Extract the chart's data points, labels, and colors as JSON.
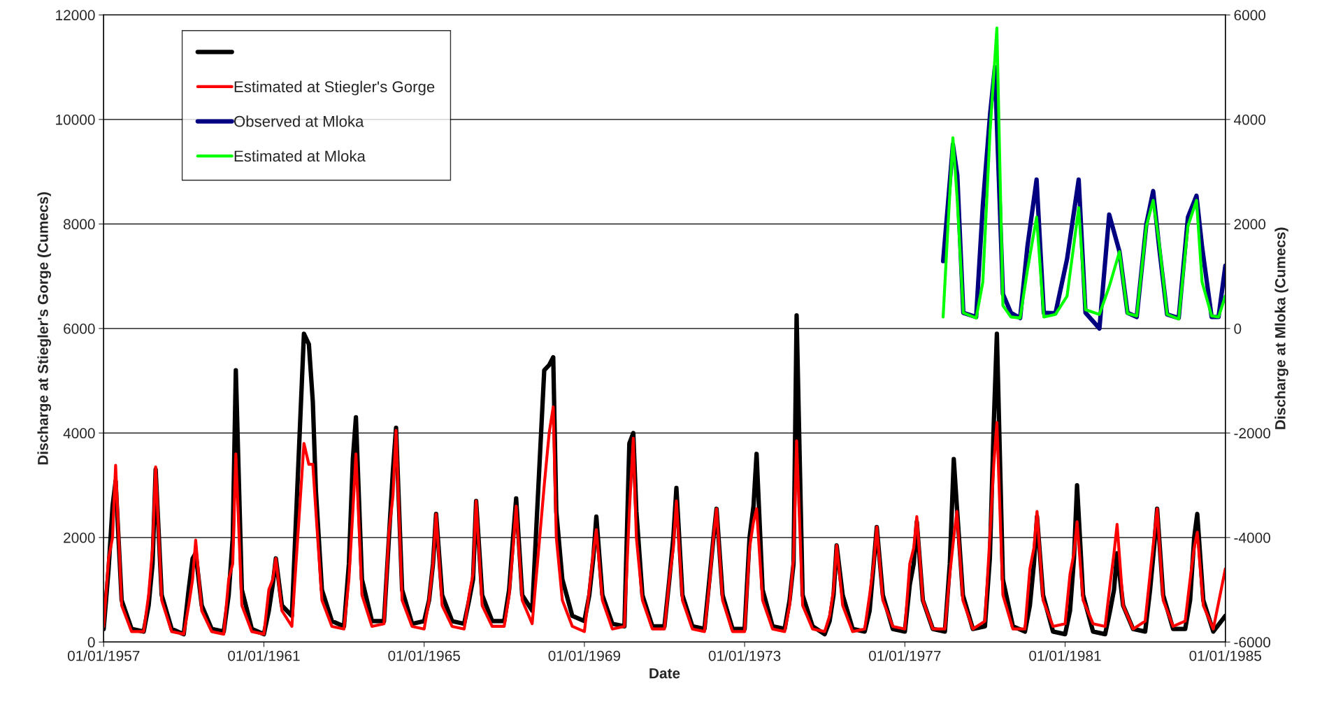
{
  "chart_data": {
    "type": "line",
    "xlabel": "Date",
    "ylabel": "Discharge at Stiegler's Gorge (Cumecs)",
    "y2label": "Discharge at Mloka (Cumecs)",
    "x": [
      "1957-01-01",
      "1957-02-15",
      "1957-03-23",
      "1957-04-20",
      "1957-06-14",
      "1957-09-13",
      "1958-01-01",
      "1958-02-15",
      "1958-03-23",
      "1958-04-20",
      "1958-06-14",
      "1958-09-13",
      "1959-01-01",
      "1959-02-15",
      "1959-03-23",
      "1959-04-20",
      "1959-06-14",
      "1959-09-13",
      "1960-01-01",
      "1960-02-15",
      "1960-03-23",
      "1960-04-20",
      "1960-06-14",
      "1960-09-13",
      "1961-01-01",
      "1961-02-15",
      "1961-03-23",
      "1961-04-20",
      "1961-06-14",
      "1961-09-13",
      "1962-01-01",
      "1962-02-15",
      "1962-03-23",
      "1962-04-20",
      "1962-06-14",
      "1962-09-13",
      "1963-01-01",
      "1963-02-15",
      "1963-03-23",
      "1963-04-20",
      "1963-06-14",
      "1963-09-13",
      "1964-01-01",
      "1964-02-15",
      "1964-03-23",
      "1964-04-20",
      "1964-06-14",
      "1964-09-13",
      "1965-01-01",
      "1965-02-15",
      "1965-03-23",
      "1965-04-20",
      "1965-06-14",
      "1965-09-13",
      "1966-01-01",
      "1966-02-15",
      "1966-03-23",
      "1966-04-20",
      "1966-06-14",
      "1966-09-13",
      "1967-01-01",
      "1967-02-15",
      "1967-03-23",
      "1967-04-20",
      "1967-06-14",
      "1967-09-13",
      "1968-01-01",
      "1968-02-15",
      "1968-03-23",
      "1968-04-20",
      "1968-06-14",
      "1968-09-13",
      "1969-01-01",
      "1969-02-15",
      "1969-03-23",
      "1969-04-20",
      "1969-06-14",
      "1969-09-13",
      "1970-01-01",
      "1970-02-15",
      "1970-03-23",
      "1970-04-20",
      "1970-06-14",
      "1970-09-13",
      "1971-01-01",
      "1971-02-15",
      "1971-03-23",
      "1971-04-20",
      "1971-06-14",
      "1971-09-13",
      "1972-01-01",
      "1972-02-15",
      "1972-03-23",
      "1972-04-20",
      "1972-06-14",
      "1972-09-13",
      "1973-01-01",
      "1973-02-15",
      "1973-03-23",
      "1973-04-20",
      "1973-06-14",
      "1973-09-13",
      "1974-01-01",
      "1974-02-15",
      "1974-03-23",
      "1974-04-20",
      "1974-06-14",
      "1974-09-13",
      "1975-01-01",
      "1975-02-15",
      "1975-03-23",
      "1975-04-20",
      "1975-06-14",
      "1975-09-13",
      "1976-01-01",
      "1976-02-15",
      "1976-03-23",
      "1976-04-20",
      "1976-06-14",
      "1976-09-13",
      "1977-01-01",
      "1977-02-15",
      "1977-03-23",
      "1977-04-20",
      "1977-06-14",
      "1977-09-13",
      "1978-01-01",
      "1978-02-15",
      "1978-03-23",
      "1978-04-20",
      "1978-06-14",
      "1978-09-13",
      "1979-01-01",
      "1979-02-15",
      "1979-03-23",
      "1979-04-20",
      "1979-06-14",
      "1979-09-13",
      "1980-01-01",
      "1980-02-15",
      "1980-03-23",
      "1980-04-20",
      "1980-06-14",
      "1980-09-13",
      "1981-01-01",
      "1981-02-15",
      "1981-03-23",
      "1981-04-20",
      "1981-06-14",
      "1981-09-13",
      "1982-01-01",
      "1982-02-15",
      "1982-03-23",
      "1982-04-20",
      "1982-06-14",
      "1982-09-13",
      "1983-01-01",
      "1983-02-15",
      "1983-03-23",
      "1983-04-20",
      "1983-06-14",
      "1983-09-13",
      "1984-01-01",
      "1984-02-15",
      "1984-03-23",
      "1984-04-20",
      "1984-06-14",
      "1984-09-13",
      "1985-01-01"
    ],
    "series": [
      {
        "color": "#000000",
        "values": [
          250,
          1400,
          2600,
          3080,
          800,
          250,
          200,
          700,
          1500,
          3300,
          900,
          250,
          150,
          1000,
          1600,
          1700,
          700,
          250,
          200,
          900,
          2000,
          5200,
          1000,
          250,
          150,
          600,
          1100,
          1600,
          700,
          500,
          5900,
          5700,
          4600,
          2900,
          1000,
          400,
          300,
          1500,
          3500,
          4300,
          1200,
          400,
          400,
          2000,
          3300,
          4100,
          1000,
          350,
          400,
          800,
          1500,
          2450,
          900,
          400,
          350,
          800,
          1200,
          2700,
          900,
          400,
          400,
          1000,
          2000,
          2750,
          900,
          600,
          5200,
          5300,
          5450,
          2500,
          1200,
          500,
          400,
          900,
          1600,
          2400,
          900,
          350,
          300,
          3800,
          4000,
          2500,
          900,
          300,
          300,
          1200,
          2000,
          2950,
          900,
          300,
          250,
          1200,
          2000,
          2550,
          900,
          250,
          250,
          2000,
          2600,
          3600,
          1000,
          300,
          250,
          800,
          1500,
          6250,
          900,
          300,
          150,
          400,
          900,
          1850,
          900,
          250,
          200,
          600,
          1500,
          2200,
          900,
          250,
          200,
          1100,
          1500,
          2300,
          800,
          250,
          200,
          1500,
          3500,
          2600,
          900,
          250,
          300,
          1600,
          4200,
          5900,
          1200,
          300,
          200,
          700,
          1500,
          2400,
          900,
          200,
          150,
          600,
          1600,
          3000,
          900,
          200,
          150,
          600,
          1000,
          1700,
          700,
          250,
          200,
          1000,
          1800,
          2550,
          900,
          250,
          250,
          800,
          2000,
          2450,
          800,
          200,
          500
        ]
      },
      {
        "name": "Estimated at Stiegler's Gorge",
        "color": "#ff0000",
        "values": [
          300,
          1600,
          2000,
          3380,
          700,
          200,
          200,
          900,
          1800,
          3350,
          800,
          200,
          150,
          700,
          1200,
          1950,
          600,
          200,
          150,
          1200,
          1500,
          3600,
          700,
          200,
          150,
          1000,
          1200,
          1600,
          600,
          300,
          3800,
          3400,
          3400,
          2500,
          800,
          300,
          250,
          1200,
          2500,
          3600,
          900,
          300,
          350,
          2100,
          2800,
          4050,
          800,
          300,
          250,
          800,
          1500,
          2450,
          700,
          300,
          250,
          900,
          1300,
          2700,
          700,
          300,
          300,
          900,
          1800,
          2600,
          800,
          350,
          3000,
          4000,
          4500,
          2000,
          800,
          300,
          200,
          1000,
          1700,
          2150,
          800,
          250,
          300,
          2500,
          3900,
          2000,
          800,
          250,
          250,
          1200,
          1800,
          2700,
          800,
          250,
          200,
          1100,
          2000,
          2550,
          800,
          200,
          200,
          1800,
          2300,
          2550,
          800,
          250,
          200,
          700,
          1600,
          3850,
          700,
          250,
          200,
          500,
          1000,
          1850,
          700,
          200,
          250,
          900,
          1500,
          2200,
          800,
          300,
          250,
          1500,
          1800,
          2400,
          800,
          250,
          250,
          1300,
          2000,
          2500,
          800,
          250,
          400,
          2000,
          3400,
          4200,
          900,
          250,
          250,
          1400,
          1800,
          2500,
          800,
          300,
          350,
          1300,
          1700,
          2300,
          800,
          350,
          300,
          1100,
          1700,
          2250,
          700,
          250,
          400,
          1300,
          2000,
          2550,
          800,
          300,
          400,
          1200,
          1800,
          2100,
          700,
          250,
          1400
        ]
      },
      {
        "name": "Observed at Mloka",
        "color": "#000080",
        "axis": "y2",
        "x": [
          "1977-12-16",
          "1978-01-19",
          "1978-03-15",
          "1978-04-24",
          "1978-06-18",
          "1978-10-13",
          "1978-12-13",
          "1979-02-17",
          "1979-04-02",
          "1979-06-14",
          "1979-08-26",
          "1979-11-18",
          "1980-01-23",
          "1980-04-16",
          "1980-06-21",
          "1980-10-05",
          "1981-01-19",
          "1981-05-05",
          "1981-07-06",
          "1981-11-10",
          "1982-02-07",
          "1982-05-12",
          "1982-07-24",
          "1982-10-16",
          "1983-01-12",
          "1983-03-15",
          "1983-05-08",
          "1983-07-20",
          "1983-11-03",
          "1984-01-26",
          "1984-04-13",
          "1984-06-03",
          "1984-08-29",
          "1984-10-31",
          "1985-01-01"
        ],
        "values": [
          1290,
          2130,
          3520,
          2940,
          300,
          220,
          2360,
          4100,
          5000,
          660,
          300,
          200,
          1560,
          2850,
          300,
          290,
          1330,
          2850,
          300,
          0,
          2180,
          1470,
          300,
          220,
          2000,
          2630,
          1560,
          270,
          200,
          2130,
          2540,
          1560,
          220,
          220,
          1200
        ]
      },
      {
        "name": "Estimated at Mloka",
        "color": "#00ff00",
        "axis": "y2",
        "x": [
          "1977-12-16",
          "1978-01-19",
          "1978-03-15",
          "1978-04-24",
          "1978-06-18",
          "1978-10-13",
          "1978-12-13",
          "1979-02-17",
          "1979-04-20",
          "1979-06-14",
          "1979-08-26",
          "1979-11-18",
          "1980-01-23",
          "1980-04-16",
          "1980-06-21",
          "1980-10-05",
          "1981-01-19",
          "1981-05-05",
          "1981-07-06",
          "1981-11-10",
          "1982-02-07",
          "1982-05-12",
          "1982-07-24",
          "1982-10-16",
          "1983-01-12",
          "1983-03-15",
          "1983-05-08",
          "1983-07-20",
          "1983-11-03",
          "1984-01-26",
          "1984-04-13",
          "1984-06-03",
          "1984-08-29",
          "1984-10-31",
          "1985-01-01"
        ],
        "values": [
          220,
          1560,
          3650,
          2450,
          300,
          200,
          890,
          3780,
          5750,
          440,
          220,
          200,
          1110,
          2130,
          220,
          270,
          620,
          2310,
          360,
          270,
          800,
          1470,
          290,
          240,
          1960,
          2450,
          1650,
          270,
          180,
          1960,
          2450,
          890,
          240,
          220,
          620
        ]
      }
    ],
    "xlim": [
      "1957-01-01",
      "1985-01-01"
    ],
    "xticks": [
      {
        "value": "1957-01-01",
        "label": "01/01/1957"
      },
      {
        "value": "1961-01-01",
        "label": "01/01/1961"
      },
      {
        "value": "1965-01-01",
        "label": "01/01/1965"
      },
      {
        "value": "1969-01-01",
        "label": "01/01/1969"
      },
      {
        "value": "1973-01-01",
        "label": "01/01/1973"
      },
      {
        "value": "1977-01-01",
        "label": "01/01/1977"
      },
      {
        "value": "1981-01-01",
        "label": "01/01/1981"
      },
      {
        "value": "1985-01-01",
        "label": "01/01/1985"
      }
    ],
    "ylim": [
      0,
      12000
    ],
    "yticks": [
      0,
      2000,
      4000,
      6000,
      8000,
      10000,
      12000
    ],
    "y2lim": [
      -6000,
      6000
    ],
    "y2ticks": [
      -6000,
      -4000,
      -2000,
      0,
      2000,
      4000,
      6000
    ],
    "grid": "y",
    "legend": "top left",
    "marker": "none",
    "line_style": "solid"
  }
}
